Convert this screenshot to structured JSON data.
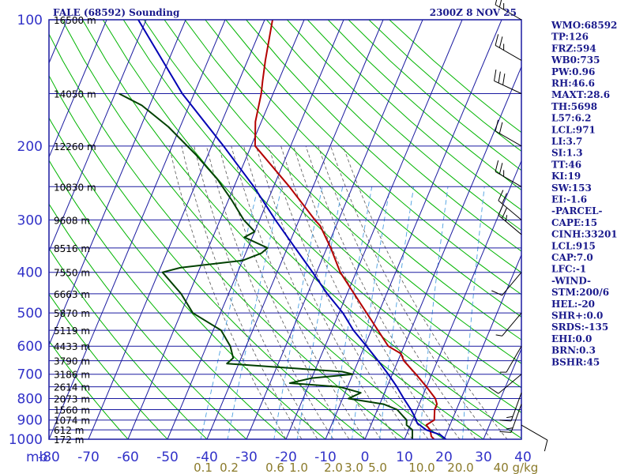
{
  "header": {
    "title": "FALE (68592) Sounding",
    "time": "2300Z  8 NOV 25"
  },
  "chart_data": {
    "type": "line",
    "title": "FALE (68592) Sounding",
    "xlabel": "",
    "ylabel": "mb",
    "xlim": [
      -80,
      40
    ],
    "ylim": [
      1000,
      100
    ],
    "x_ticks": [
      -80,
      -70,
      -60,
      -50,
      -40,
      -30,
      -20,
      -10,
      0,
      10,
      20,
      30,
      40
    ],
    "x_tick_labels": [
      "-80",
      "-70",
      "-60",
      "-50",
      "-40",
      "-30",
      "-20",
      "-10",
      "0",
      "10",
      "20",
      "30",
      "40"
    ],
    "y_ticks": [
      100,
      200,
      300,
      400,
      500,
      600,
      700,
      800,
      900,
      1000
    ],
    "y_tick_labels": [
      "100",
      "200",
      "300",
      "400",
      "500",
      "600",
      "700",
      "800",
      "900",
      "1000"
    ],
    "mixing_ratio_labels": [
      "0.1",
      "0.2",
      "0.6",
      "1.0",
      "2.0",
      "3.0",
      "5.0",
      "10.0",
      "20.0",
      "40 g/kg"
    ],
    "height_labels": [
      {
        "p": 100,
        "label": "16500 m"
      },
      {
        "p": 150,
        "label": "14050 m"
      },
      {
        "p": 200,
        "label": "12260 m"
      },
      {
        "p": 250,
        "label": "10830 m"
      },
      {
        "p": 300,
        "label": "9608 m"
      },
      {
        "p": 350,
        "label": "8516 m"
      },
      {
        "p": 400,
        "label": "7550 m"
      },
      {
        "p": 450,
        "label": "6663 m"
      },
      {
        "p": 500,
        "label": "5870 m"
      },
      {
        "p": 550,
        "label": "5119 m"
      },
      {
        "p": 600,
        "label": "4433 m"
      },
      {
        "p": 650,
        "label": "3790 m"
      },
      {
        "p": 700,
        "label": "3186 m"
      },
      {
        "p": 750,
        "label": "2614 m"
      },
      {
        "p": 800,
        "label": "2073 m"
      },
      {
        "p": 850,
        "label": "1560 m"
      },
      {
        "p": 900,
        "label": "1074 m"
      },
      {
        "p": 950,
        "label": "612 m"
      },
      {
        "p": 1000,
        "label": "172 m"
      }
    ],
    "series": [
      {
        "key": "temperature",
        "color": "#b40000",
        "points": [
          [
            1000,
            17.5
          ],
          [
            985,
            16.5
          ],
          [
            950,
            15.5
          ],
          [
            925,
            14
          ],
          [
            900,
            15.5
          ],
          [
            850,
            14.5
          ],
          [
            825,
            14.5
          ],
          [
            800,
            13.5
          ],
          [
            750,
            10
          ],
          [
            700,
            6
          ],
          [
            650,
            1.5
          ],
          [
            625,
            0
          ],
          [
            600,
            -4
          ],
          [
            500,
            -13
          ],
          [
            400,
            -24
          ],
          [
            350,
            -29
          ],
          [
            310,
            -34
          ],
          [
            300,
            -36
          ],
          [
            250,
            -46
          ],
          [
            200,
            -59
          ],
          [
            175,
            -61.5
          ],
          [
            150,
            -63
          ],
          [
            140,
            -64
          ],
          [
            125,
            -65.5
          ],
          [
            100,
            -68
          ]
        ]
      },
      {
        "key": "dewpoint",
        "color": "#004000",
        "points": [
          [
            1000,
            12
          ],
          [
            950,
            11
          ],
          [
            925,
            9
          ],
          [
            900,
            8.5
          ],
          [
            850,
            5
          ],
          [
            825,
            1
          ],
          [
            800,
            -8.5
          ],
          [
            775,
            -6
          ],
          [
            750,
            -12
          ],
          [
            735,
            -25
          ],
          [
            715,
            -20
          ],
          [
            700,
            -10
          ],
          [
            690,
            -13
          ],
          [
            675,
            -28
          ],
          [
            660,
            -43
          ],
          [
            640,
            -42
          ],
          [
            600,
            -44
          ],
          [
            550,
            -48
          ],
          [
            500,
            -57
          ],
          [
            450,
            -62
          ],
          [
            400,
            -69
          ],
          [
            390,
            -65
          ],
          [
            375,
            -50
          ],
          [
            360,
            -46
          ],
          [
            350,
            -45
          ],
          [
            330,
            -52
          ],
          [
            320,
            -50
          ],
          [
            300,
            -54
          ],
          [
            270,
            -59
          ],
          [
            240,
            -65
          ],
          [
            210,
            -73
          ],
          [
            180,
            -83
          ],
          [
            160,
            -92
          ],
          [
            150,
            -99
          ]
        ]
      },
      {
        "key": "parcel",
        "color": "#0000b4",
        "points": [
          [
            1000,
            20.5
          ],
          [
            975,
            18.5
          ],
          [
            950,
            14.5
          ],
          [
            915,
            11.5
          ],
          [
            880,
            10
          ],
          [
            850,
            8.5
          ],
          [
            800,
            5.5
          ],
          [
            750,
            2.5
          ],
          [
            700,
            -1
          ],
          [
            650,
            -5
          ],
          [
            600,
            -9.5
          ],
          [
            550,
            -14.5
          ],
          [
            500,
            -19
          ],
          [
            450,
            -25
          ],
          [
            400,
            -31
          ],
          [
            350,
            -38
          ],
          [
            300,
            -46
          ],
          [
            250,
            -55
          ],
          [
            200,
            -67
          ],
          [
            150,
            -83
          ],
          [
            100,
            -102
          ]
        ]
      }
    ],
    "wind_barbs": [
      {
        "p": 100,
        "dir": 300,
        "speed_kt": 25
      },
      {
        "p": 125,
        "dir": 300,
        "speed_kt": 25
      },
      {
        "p": 150,
        "dir": 295,
        "speed_kt": 30
      },
      {
        "p": 200,
        "dir": 300,
        "speed_kt": 20
      },
      {
        "p": 250,
        "dir": 300,
        "speed_kt": 25
      },
      {
        "p": 300,
        "dir": 310,
        "speed_kt": 20
      },
      {
        "p": 325,
        "dir": 310,
        "speed_kt": 25
      },
      {
        "p": 400,
        "dir": 220,
        "speed_kt": 10
      },
      {
        "p": 500,
        "dir": 220,
        "speed_kt": 5
      },
      {
        "p": 600,
        "dir": 210,
        "speed_kt": 5
      },
      {
        "p": 700,
        "dir": 230,
        "speed_kt": 10
      },
      {
        "p": 775,
        "dir": 200,
        "speed_kt": 15
      },
      {
        "p": 825,
        "dir": 200,
        "speed_kt": 15
      },
      {
        "p": 925,
        "dir": 120,
        "speed_kt": 10
      }
    ]
  },
  "indices": [
    "WMO:68592",
    "TP:126",
    "FRZ:594",
    "WB0:735",
    "PW:0.96",
    "RH:46.6",
    "MAXT:28.6",
    "TH:5698",
    "L57:6.2",
    "LCL:971",
    "LI:3.7",
    "SI:1.3",
    "TT:46",
    "KI:19",
    "SW:153",
    "EI:-1.6",
    "-PARCEL-",
    "CAPE:15",
    "CINH:33201",
    "LCL:915",
    "CAP:7.0",
    "LFC:-1",
    "-WIND-",
    "STM:200/6",
    "HEL:-20",
    "SHR+:0.0",
    "SRDS:-135",
    "EHI:0.0",
    "BRN:0.3",
    "BSHR:45"
  ],
  "colors": {
    "frame": "#1a1aa0",
    "isobar": "#1a1aa0",
    "isotherm": "#1a1aa0",
    "dry_adiabat": "#00b400",
    "moist_adiabat": "#555555",
    "mixing_ratio": "#4a9fe0",
    "header_text": "#1a1a8c",
    "tick_text": "#3232c8",
    "mixing_ratio_text": "#8a7a2a"
  }
}
